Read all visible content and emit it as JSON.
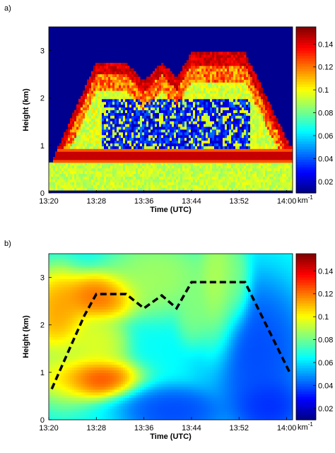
{
  "chart_data": [
    {
      "panel_label": "a)",
      "type": "heatmap",
      "title": "",
      "xlabel": "Time (UTC)",
      "ylabel": "Height (km)",
      "x_tick_labels": [
        "13:20",
        "13:28",
        "13:36",
        "13:44",
        "13:52",
        "14:00"
      ],
      "x_tick_minutes": [
        0,
        8,
        16,
        24,
        32,
        40
      ],
      "xlim_minutes": [
        0,
        41
      ],
      "y_tick_labels": [
        "0",
        "1",
        "2",
        "3"
      ],
      "y_ticks": [
        0,
        1,
        2,
        3
      ],
      "ylim": [
        0,
        3.5
      ],
      "colorbar": {
        "tick_labels": [
          "0.02",
          "0.04",
          "0.06",
          "0.08",
          "0.1",
          "0.12",
          "0.14"
        ],
        "ticks": [
          0.02,
          0.04,
          0.06,
          0.08,
          0.1,
          0.12,
          0.14
        ],
        "range": [
          0.01,
          0.155
        ],
        "unit_base": "km",
        "unit_exp": "-1",
        "colormap": "jet"
      },
      "cloud_top_km": [
        {
          "t": 0.5,
          "h": 0.65
        },
        {
          "t": 3.5,
          "h": 1.5
        },
        {
          "t": 6,
          "h": 2.2
        },
        {
          "t": 8,
          "h": 2.75
        },
        {
          "t": 13,
          "h": 2.75
        },
        {
          "t": 16,
          "h": 2.35
        },
        {
          "t": 19,
          "h": 2.75
        },
        {
          "t": 21.5,
          "h": 2.42
        },
        {
          "t": 24,
          "h": 2.95
        },
        {
          "t": 33,
          "h": 2.95
        },
        {
          "t": 40.5,
          "h": 1.0
        }
      ],
      "lower_layer_km": 0.8,
      "background_color": "#00008f"
    },
    {
      "panel_label": "b)",
      "type": "heatmap",
      "title": "",
      "xlabel": "Time (UTC)",
      "ylabel": "Height (km)",
      "x_tick_labels": [
        "13:20",
        "13:28",
        "13:36",
        "13:44",
        "13:52",
        "14:00"
      ],
      "x_tick_minutes": [
        0,
        8,
        16,
        24,
        32,
        40
      ],
      "xlim_minutes": [
        0,
        41
      ],
      "y_tick_labels": [
        "0",
        "1",
        "2",
        "3"
      ],
      "y_ticks": [
        0,
        1,
        2,
        3
      ],
      "ylim": [
        0,
        3.5
      ],
      "colorbar": {
        "tick_labels": [
          "0.02",
          "0.04",
          "0.06",
          "0.08",
          "0.1",
          "0.12",
          "0.14"
        ],
        "ticks": [
          0.02,
          0.04,
          0.06,
          0.08,
          0.1,
          0.12,
          0.14
        ],
        "range": [
          0.01,
          0.155
        ],
        "unit_base": "km",
        "unit_exp": "-1",
        "colormap": "jet"
      },
      "field_blobs": [
        {
          "t": 1.5,
          "h": 2.25,
          "rt": 3.5,
          "rh": 0.65,
          "v": 0.12
        },
        {
          "t": 8.5,
          "h": 2.6,
          "rt": 4.5,
          "rh": 0.35,
          "v": 0.13
        },
        {
          "t": 6.5,
          "h": 0.9,
          "rt": 5.5,
          "rh": 0.3,
          "v": 0.14
        },
        {
          "t": 2.5,
          "h": 1.0,
          "rt": 4,
          "rh": 0.55,
          "v": 0.09
        },
        {
          "t": 8,
          "h": 1.6,
          "rt": 3.5,
          "rh": 0.45,
          "v": 0.1
        },
        {
          "t": 18,
          "h": 3.0,
          "rt": 6,
          "rh": 0.55,
          "v": 0.09
        },
        {
          "t": 24.5,
          "h": 2.3,
          "rt": 2,
          "rh": 0.5,
          "v": 0.085
        },
        {
          "t": 28.5,
          "h": 2.6,
          "rt": 2.5,
          "rh": 1.0,
          "v": 0.095
        },
        {
          "t": 31.5,
          "h": 2.8,
          "rt": 1.8,
          "rh": 0.6,
          "v": 0.085
        },
        {
          "t": 35,
          "h": 1.4,
          "rt": 6,
          "rh": 1.1,
          "v": 0.035
        },
        {
          "t": 21,
          "h": 0.2,
          "rt": 6,
          "rh": 0.35,
          "v": 0.035
        },
        {
          "t": 37,
          "h": 0.3,
          "rt": 4,
          "rh": 0.4,
          "v": 0.03
        }
      ],
      "field_background": 0.065,
      "overlay_line": {
        "style": "dashed",
        "color": "#000000",
        "points": [
          {
            "t": 0.5,
            "h": 0.65
          },
          {
            "t": 3.5,
            "h": 1.5
          },
          {
            "t": 6,
            "h": 2.2
          },
          {
            "t": 8,
            "h": 2.65
          },
          {
            "t": 13,
            "h": 2.65
          },
          {
            "t": 16,
            "h": 2.35
          },
          {
            "t": 19,
            "h": 2.62
          },
          {
            "t": 21.5,
            "h": 2.35
          },
          {
            "t": 24,
            "h": 2.9
          },
          {
            "t": 33,
            "h": 2.9
          },
          {
            "t": 40.5,
            "h": 1.0
          }
        ]
      }
    }
  ]
}
